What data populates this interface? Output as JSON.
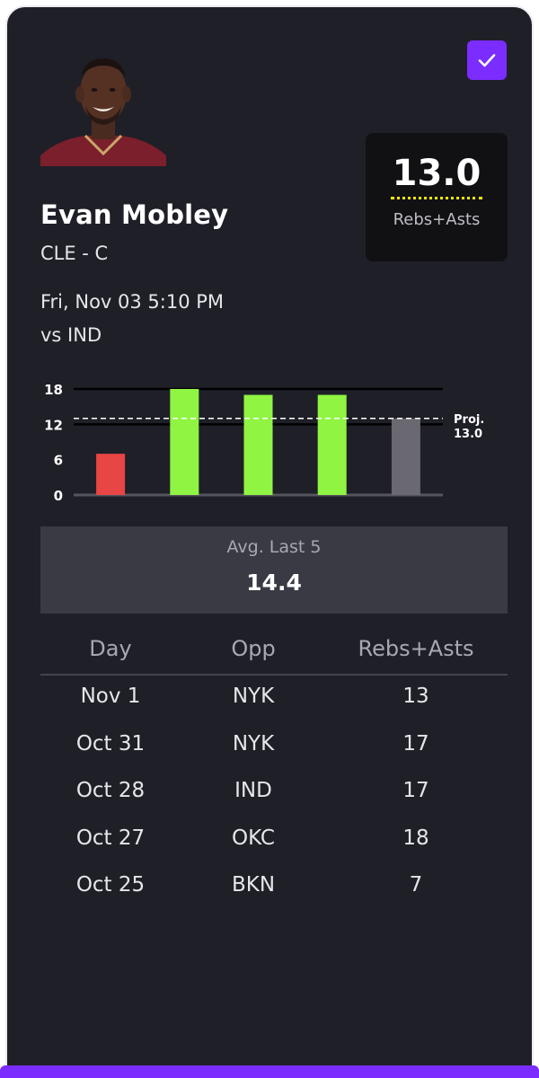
{
  "player": {
    "name": "Evan Mobley",
    "team_pos": "CLE - C",
    "game_time": "Fri, Nov 03 5:10 PM",
    "opponent": "vs IND",
    "selected": true
  },
  "projection": {
    "value": "13.0",
    "stat": "Rebs+Asts"
  },
  "chart_data": {
    "type": "bar",
    "categories": [
      "Oct 25",
      "Oct 27",
      "Oct 28",
      "Oct 31",
      "Nov 1"
    ],
    "values": [
      7,
      18,
      17,
      17,
      13
    ],
    "bar_colors": [
      "#e84545",
      "#8ff542",
      "#8ff542",
      "#8ff542",
      "#6a6870"
    ],
    "yticks": [
      0,
      6,
      12,
      18
    ],
    "ylim": [
      0,
      18
    ],
    "reference_line": {
      "value": 13.0,
      "label_line1": "Proj.",
      "label_line2": "13.0"
    }
  },
  "average": {
    "label": "Avg. Last 5",
    "value": "14.4"
  },
  "table": {
    "headers": [
      "Day",
      "Opp",
      "Rebs+Asts"
    ],
    "rows": [
      [
        "Nov 1",
        "NYK",
        "13"
      ],
      [
        "Oct 31",
        "NYK",
        "17"
      ],
      [
        "Oct 28",
        "IND",
        "17"
      ],
      [
        "Oct 27",
        "OKC",
        "18"
      ],
      [
        "Oct 25",
        "BKN",
        "7"
      ]
    ]
  },
  "colors": {
    "accent": "#7b2cff",
    "card_bg": "#1f1f28",
    "underline": "#ffe600"
  },
  "icons": {
    "check": "check-icon"
  }
}
